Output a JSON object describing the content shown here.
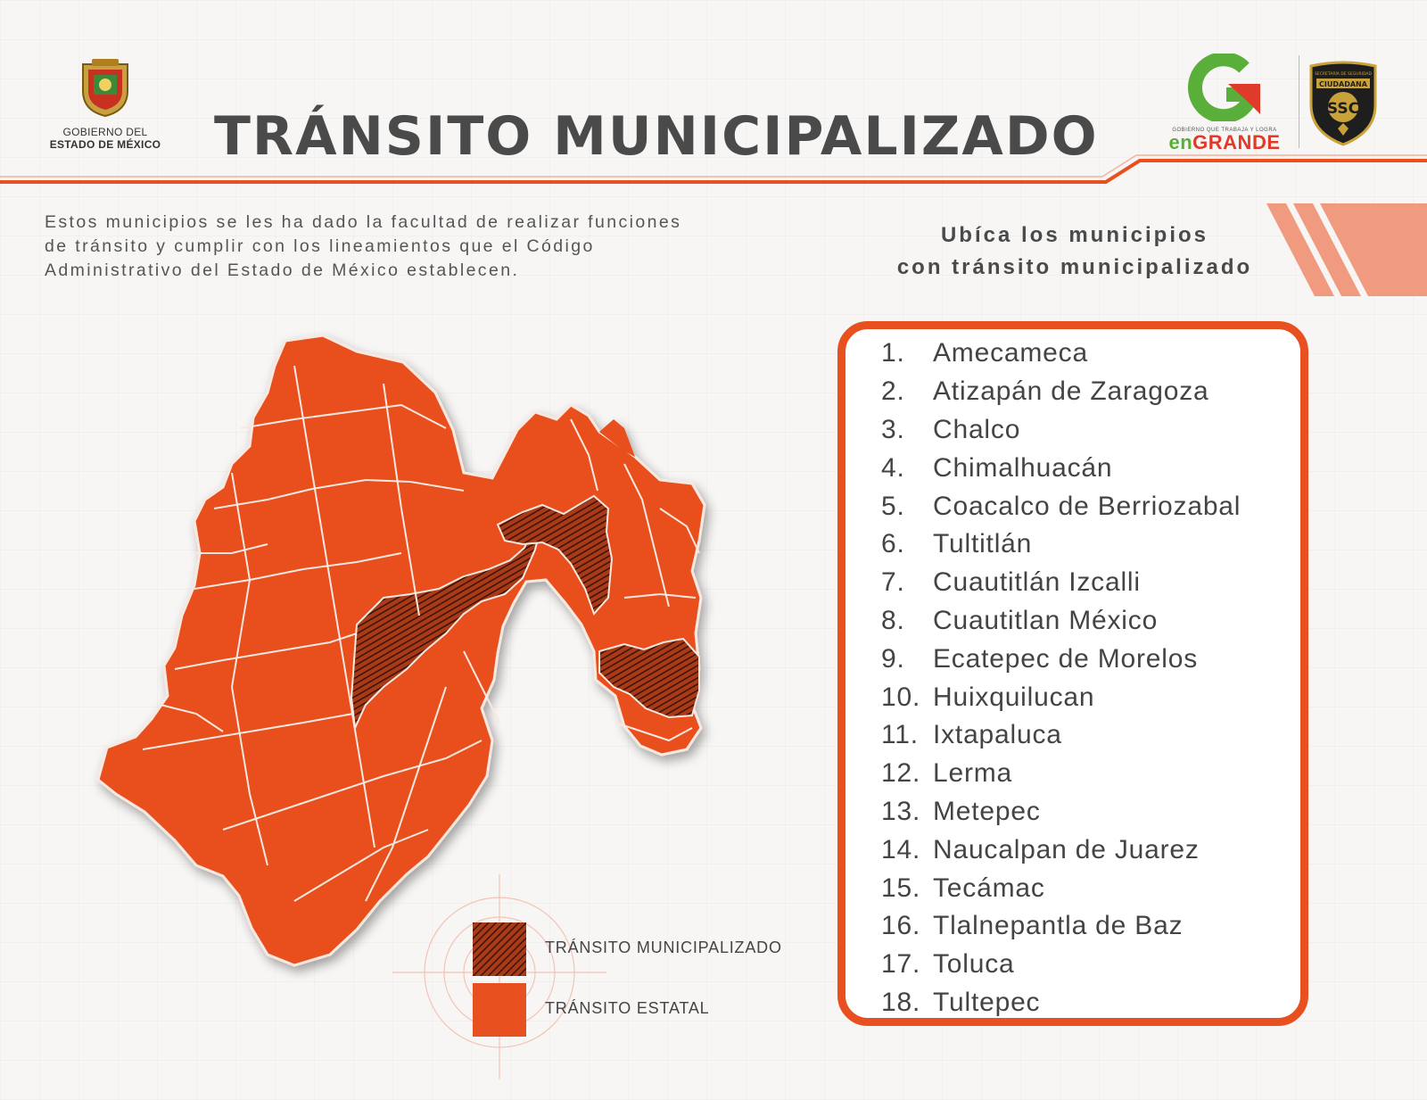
{
  "header": {
    "gov_logo_line1": "GOBIERNO DEL",
    "gov_logo_line2": "ESTADO DE MÉXICO",
    "title": "TRÁNSITO MUNICIPALIZADO",
    "brand_logo": {
      "tagline": "GOBIERNO QUE TRABAJA Y LOGRA",
      "word_part1": "en",
      "word_part2": "GRANDE"
    },
    "ssc_logo": {
      "top_text": "SECRETARÍA DE SEGURIDAD",
      "mid_text": "CIUDADANA",
      "initials": "SSC"
    }
  },
  "intro": {
    "lines": [
      "Estos municipios se les ha dado la facultad de realizar funciones",
      "de tránsito y cumplir con los lineamientos que el Código",
      "Administrativo del Estado de México establecen."
    ]
  },
  "locate_heading": {
    "lines": [
      "Ubíca los municipios",
      "con tránsito municipalizado"
    ]
  },
  "legend": {
    "items": [
      {
        "label": "TRÁNSITO MUNICIPALIZADO",
        "style": "hatched",
        "color": "#7a2a12"
      },
      {
        "label": "TRÁNSITO ESTATAL",
        "style": "solid",
        "color": "#e8501f"
      }
    ]
  },
  "municipalities": [
    {
      "num": "1.",
      "name": "Amecameca"
    },
    {
      "num": "2.",
      "name": "Atizapán de Zaragoza"
    },
    {
      "num": "3.",
      "name": "Chalco"
    },
    {
      "num": "4.",
      "name": "Chimalhuacán"
    },
    {
      "num": "5.",
      "name": "Coacalco de Berriozabal"
    },
    {
      "num": "6.",
      "name": "Tultitlán"
    },
    {
      "num": "7.",
      "name": "Cuautitlán Izcalli"
    },
    {
      "num": "8.",
      "name": "Cuautitlan México"
    },
    {
      "num": "9.",
      "name": "Ecatepec de Morelos"
    },
    {
      "num": "10.",
      "name": "Huixquilucan"
    },
    {
      "num": "11.",
      "name": "Ixtapaluca"
    },
    {
      "num": "12.",
      "name": "Lerma"
    },
    {
      "num": "13.",
      "name": "Metepec"
    },
    {
      "num": "14.",
      "name": "Naucalpan de Juarez"
    },
    {
      "num": "15.",
      "name": "Tecámac"
    },
    {
      "num": "16.",
      "name": "Tlalnepantla de Baz"
    },
    {
      "num": "17.",
      "name": "Toluca"
    },
    {
      "num": "18.",
      "name": "Tultepec"
    }
  ],
  "colors": {
    "accent": "#e8501f",
    "municipal": "#7a2a12",
    "title": "#4a4a4a"
  }
}
